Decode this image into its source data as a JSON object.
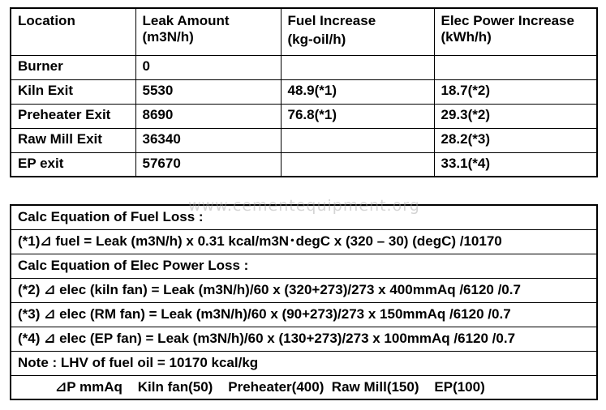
{
  "leak_table": {
    "headers": {
      "location": "Location",
      "leak_line1": "Leak Amount",
      "leak_line2": "(m3N/h)",
      "fuel_line1": "Fuel Increase",
      "fuel_line2": "(kg-oil/h)",
      "elec_line1": "Elec Power Increase",
      "elec_line2": "(kWh/h)"
    },
    "rows": [
      {
        "location": "Burner",
        "leak": "0",
        "fuel": "",
        "elec": ""
      },
      {
        "location": "Kiln Exit",
        "leak": "5530",
        "fuel": "48.9(*1)",
        "elec": "18.7(*2)"
      },
      {
        "location": "Preheater Exit",
        "leak": "8690",
        "fuel": "76.8(*1)",
        "elec": "29.3(*2)"
      },
      {
        "location": "Raw Mill Exit",
        "leak": "36340",
        "fuel": "",
        "elec": "28.2(*3)"
      },
      {
        "location": "EP exit",
        "leak": "57670",
        "fuel": "",
        "elec": "33.1(*4)"
      }
    ]
  },
  "watermark": "www.cementequipment.org",
  "equation_table": {
    "lines": [
      "Calc Equation of Fuel Loss :",
      "(*1)⊿ fuel = Leak (m3N/h) x 0.31 kcal/m3N･degC x (320 – 30) (degC) /10170",
      "Calc Equation of Elec Power Loss :",
      "(*2) ⊿ elec (kiln fan) = Leak (m3N/h)/60 x (320+273)/273 x 400mmAq /6120 /0.7",
      "(*3) ⊿ elec (RM fan) = Leak (m3N/h)/60 x (90+273)/273 x 150mmAq /6120 /0.7",
      "(*4) ⊿ elec (EP fan) = Leak (m3N/h)/60 x (130+273)/273 x 100mmAq /6120 /0.7",
      "Note : LHV of fuel oil = 10170 kcal/kg",
      "⊿P mmAq    Kiln fan(50)    Preheater(400)  Raw Mill(150)    EP(100)"
    ]
  }
}
